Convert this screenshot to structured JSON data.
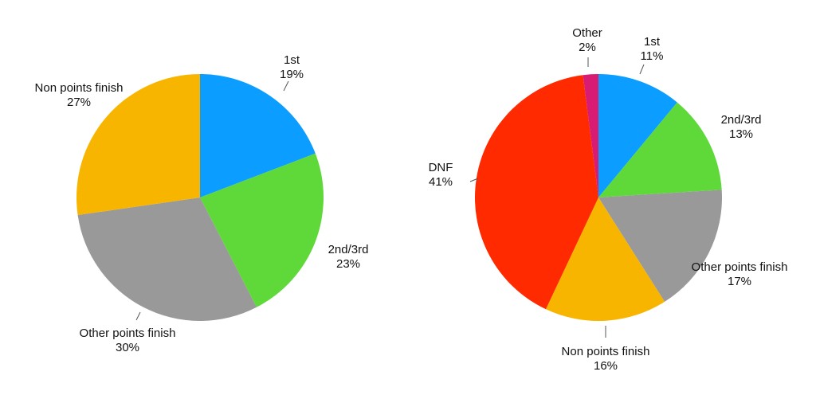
{
  "chart_data": [
    {
      "type": "pie",
      "slices": [
        {
          "label": "1st",
          "percent_label": "19%",
          "value": 19,
          "color": "#0b9dff"
        },
        {
          "label": "2nd/3rd",
          "percent_label": "23%",
          "value": 23,
          "color": "#5fd93a"
        },
        {
          "label": "Other points finish",
          "percent_label": "30%",
          "value": 30,
          "color": "#999999"
        },
        {
          "label": "Non points finish",
          "percent_label": "27%",
          "value": 27,
          "color": "#f7b500"
        }
      ],
      "start": "12 o'clock",
      "direction": "clockwise"
    },
    {
      "type": "pie",
      "slices": [
        {
          "label": "1st",
          "percent_label": "11%",
          "value": 11,
          "color": "#0b9dff"
        },
        {
          "label": "2nd/3rd",
          "percent_label": "13%",
          "value": 13,
          "color": "#5fd93a"
        },
        {
          "label": "Other points finish",
          "percent_label": "17%",
          "value": 17,
          "color": "#999999"
        },
        {
          "label": "Non points finish",
          "percent_label": "16%",
          "value": 16,
          "color": "#f7b500"
        },
        {
          "label": "DNF",
          "percent_label": "41%",
          "value": 41,
          "color": "#ff2a00"
        },
        {
          "label": "Other",
          "percent_label": "2%",
          "value": 2,
          "color": "#d81b73"
        }
      ],
      "start": "12 o'clock",
      "direction": "clockwise"
    }
  ]
}
